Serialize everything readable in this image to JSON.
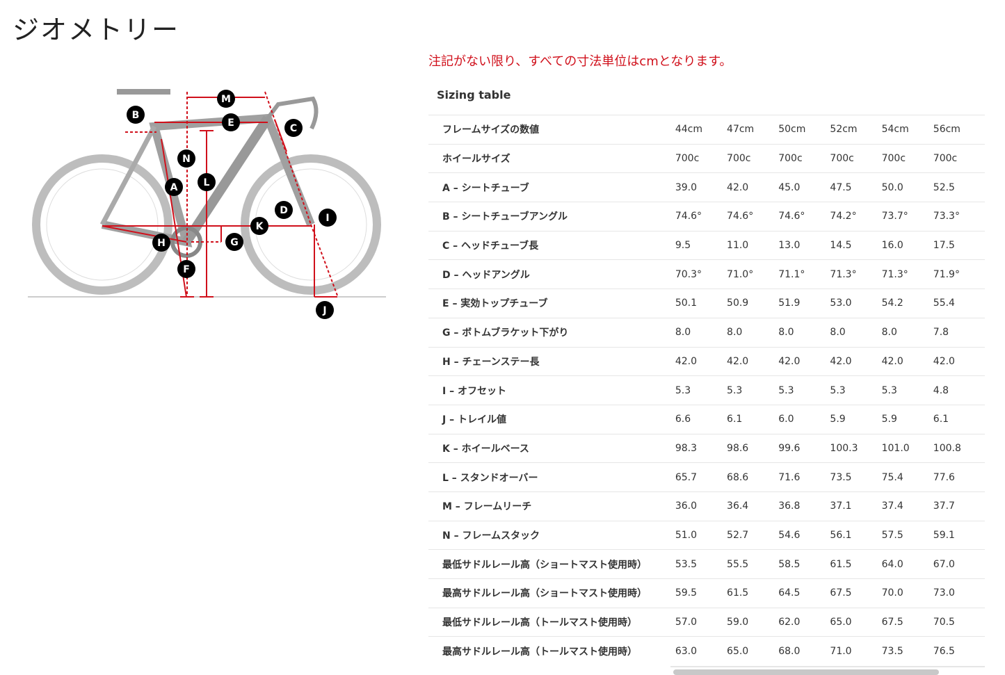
{
  "page": {
    "title": "ジオメトリー",
    "note": "注記がない限り、すべての寸法単位はcmとなります。",
    "table_caption": "Sizing table"
  },
  "diagram": {
    "labels": [
      "B",
      "M",
      "E",
      "C",
      "N",
      "L",
      "A",
      "D",
      "I",
      "K",
      "G",
      "H",
      "F",
      "J"
    ],
    "accent": "#d0101b"
  },
  "table": {
    "rows": [
      {
        "label": "フレームサイズの数値",
        "values": [
          "44cm",
          "47cm",
          "50cm",
          "52cm",
          "54cm",
          "56cm"
        ]
      },
      {
        "label": "ホイールサイズ",
        "values": [
          "700c",
          "700c",
          "700c",
          "700c",
          "700c",
          "700c"
        ]
      },
      {
        "label": "A – シートチューブ",
        "values": [
          "39.0",
          "42.0",
          "45.0",
          "47.5",
          "50.0",
          "52.5"
        ]
      },
      {
        "label": "B – シートチューブアングル",
        "values": [
          "74.6°",
          "74.6°",
          "74.6°",
          "74.2°",
          "73.7°",
          "73.3°"
        ]
      },
      {
        "label": "C – ヘッドチューブ長",
        "values": [
          "9.5",
          "11.0",
          "13.0",
          "14.5",
          "16.0",
          "17.5"
        ]
      },
      {
        "label": "D – ヘッドアングル",
        "values": [
          "70.3°",
          "71.0°",
          "71.1°",
          "71.3°",
          "71.3°",
          "71.9°"
        ]
      },
      {
        "label": "E – 実効トップチューブ",
        "values": [
          "50.1",
          "50.9",
          "51.9",
          "53.0",
          "54.2",
          "55.4"
        ]
      },
      {
        "label": "G – ボトムブラケット下がり",
        "values": [
          "8.0",
          "8.0",
          "8.0",
          "8.0",
          "8.0",
          "7.8"
        ]
      },
      {
        "label": "H – チェーンステー長",
        "values": [
          "42.0",
          "42.0",
          "42.0",
          "42.0",
          "42.0",
          "42.0"
        ]
      },
      {
        "label": "I – オフセット",
        "values": [
          "5.3",
          "5.3",
          "5.3",
          "5.3",
          "5.3",
          "4.8"
        ]
      },
      {
        "label": "J – トレイル値",
        "values": [
          "6.6",
          "6.1",
          "6.0",
          "5.9",
          "5.9",
          "6.1"
        ]
      },
      {
        "label": "K – ホイールベース",
        "values": [
          "98.3",
          "98.6",
          "99.6",
          "100.3",
          "101.0",
          "100.8"
        ]
      },
      {
        "label": "L – スタンドオーバー",
        "values": [
          "65.7",
          "68.6",
          "71.6",
          "73.5",
          "75.4",
          "77.6"
        ]
      },
      {
        "label": "M – フレームリーチ",
        "values": [
          "36.0",
          "36.4",
          "36.8",
          "37.1",
          "37.4",
          "37.7"
        ]
      },
      {
        "label": "N – フレームスタック",
        "values": [
          "51.0",
          "52.7",
          "54.6",
          "56.1",
          "57.5",
          "59.1"
        ]
      },
      {
        "label": "最低サドルレール高（ショートマスト使用時）",
        "values": [
          "53.5",
          "55.5",
          "58.5",
          "61.5",
          "64.0",
          "67.0"
        ]
      },
      {
        "label": "最高サドルレール高（ショートマスト使用時）",
        "values": [
          "59.5",
          "61.5",
          "64.5",
          "67.5",
          "70.0",
          "73.0"
        ]
      },
      {
        "label": "最低サドルレール高（トールマスト使用時）",
        "values": [
          "57.0",
          "59.0",
          "62.0",
          "65.0",
          "67.5",
          "70.5"
        ]
      },
      {
        "label": "最高サドルレール高（トールマスト使用時）",
        "values": [
          "63.0",
          "65.0",
          "68.0",
          "71.0",
          "73.5",
          "76.5"
        ]
      }
    ]
  }
}
